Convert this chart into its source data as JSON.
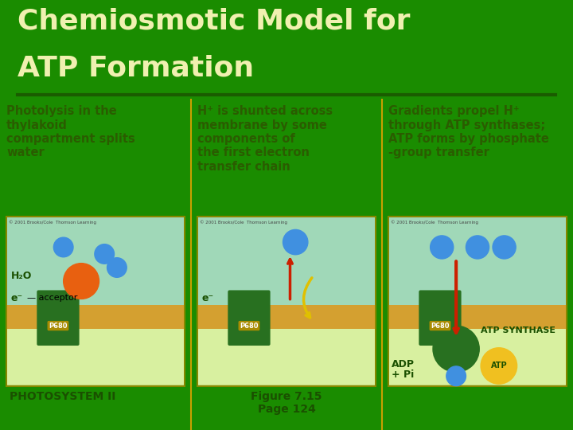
{
  "title_line1": "Chemiosmotic Model for",
  "title_line2": "ATP Formation",
  "title_bg_color": "#1a8c00",
  "title_text_color": "#f0f0b0",
  "body_bg_color": "#f0c020",
  "divider_color": "#1a5c00",
  "panel_border_color": "#888800",
  "desc1": "Photolysis in the\nthylakoid\ncompartment splits\nwater",
  "desc2": "H⁺ is shunted across\nmembrane by some\ncomponents of\nthe first electron\ntransfer chain",
  "desc3": "Gradients propel H⁺\nthrough ATP synthases;\nATP forms by phosphate\n-group transfer",
  "label1": "PHOTOSYSTEM II",
  "label2": "Figure 7.15\nPage 124",
  "label3": "ATP SYNTHASE",
  "label3b_line1": "ADP",
  "label3b_line2": "+ P",
  "label3c": "ATP",
  "copy_text": "© 2001 Brooks/Cole  Thomson Learning",
  "desc_color": "#2a5c00",
  "label_color": "#1a5000",
  "title_fontsize": 26,
  "desc_fontsize": 10.5,
  "label_fontsize": 10
}
